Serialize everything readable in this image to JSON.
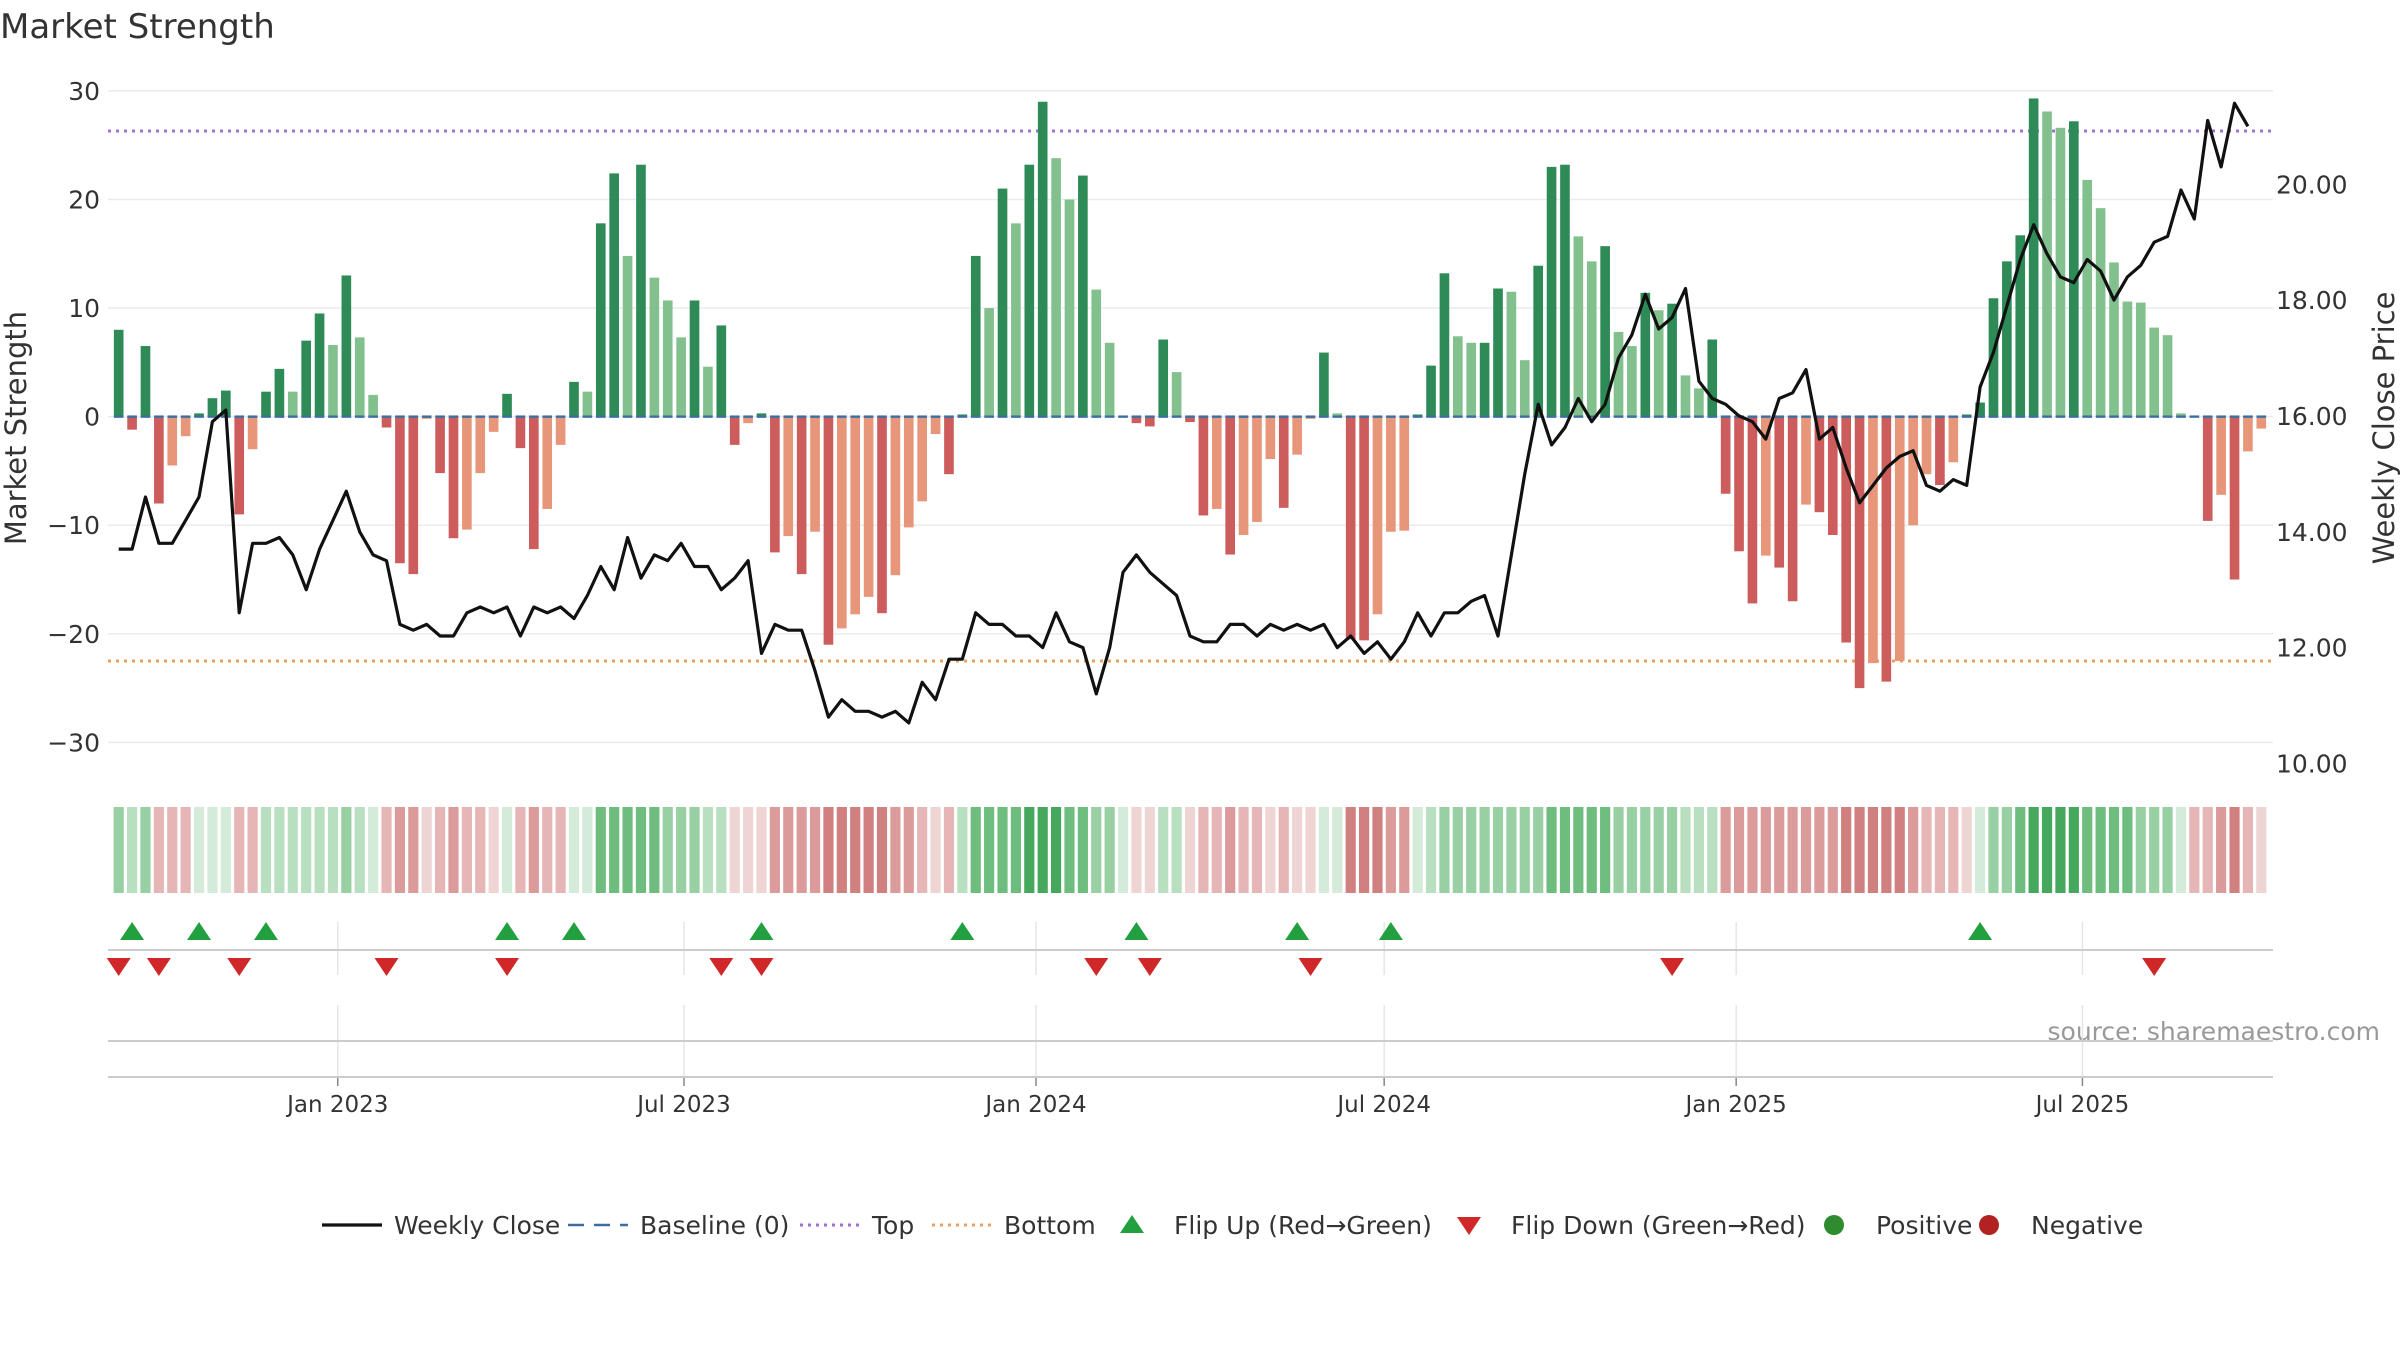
{
  "chart_data": {
    "type": "bar",
    "title": "Market Strength",
    "ylabel_left": "Market Strength",
    "ylabel_right": "Weekly Close Price",
    "ylim_left": [
      -33,
      31
    ],
    "ylim_right": [
      9.8,
      21.8
    ],
    "yticks_left": [
      30,
      20,
      10,
      0,
      -10,
      -20,
      -30
    ],
    "yticks_left_labels": [
      "30",
      "20",
      "10",
      "0",
      "−10",
      "−20",
      "−30"
    ],
    "yticks_right": [
      20,
      18,
      16,
      14,
      12,
      10
    ],
    "yticks_right_labels": [
      "20.00",
      "18.00",
      "16.00",
      "14.00",
      "12.00",
      "10.00"
    ],
    "top_line": 26.3,
    "bottom_line": -22.5,
    "start_date": "2022-09-05",
    "end_date": "2025-10-06",
    "x_ticks": [
      {
        "date": "2023-01-01",
        "label": "Jan 2023"
      },
      {
        "date": "2023-07-01",
        "label": "Jul 2023"
      },
      {
        "date": "2024-01-01",
        "label": "Jan 2024"
      },
      {
        "date": "2024-07-01",
        "label": "Jul 2024"
      },
      {
        "date": "2025-01-01",
        "label": "Jan 2025"
      },
      {
        "date": "2025-07-01",
        "label": "Jul 2025"
      }
    ],
    "strength_values": [
      8,
      -1.2,
      6.5,
      -8,
      -4.5,
      -1.8,
      0.3,
      1.7,
      2.4,
      -9,
      -3,
      2.3,
      4.4,
      2.3,
      7,
      9.5,
      6.6,
      13,
      7.3,
      2,
      -1,
      -13.5,
      -14.5,
      -0.2,
      -5.2,
      -11.2,
      -10.4,
      -5.2,
      -1.4,
      2.1,
      -2.9,
      -12.2,
      -8.5,
      -2.6,
      3.2,
      2.3,
      17.8,
      22.4,
      14.8,
      23.2,
      12.8,
      10.7,
      7.3,
      10.7,
      4.6,
      8.4,
      -2.6,
      -0.6,
      0.3,
      -12.5,
      -11,
      -14.5,
      -10.6,
      -21,
      -19.5,
      -18.2,
      -16.6,
      -18.1,
      -14.6,
      -10.2,
      -7.8,
      -1.6,
      -5.3,
      0.2,
      14.8,
      10,
      21,
      17.8,
      23.2,
      29,
      23.8,
      20,
      22.2,
      11.7,
      6.8,
      0,
      -0.6,
      -0.9,
      7.1,
      4.1,
      -0.5,
      -9.1,
      -8.5,
      -12.7,
      -10.9,
      -9.7,
      -3.9,
      -8.4,
      -3.5,
      -0.2,
      5.9,
      0.3,
      -20.5,
      -20.6,
      -18.2,
      -10.6,
      -10.5,
      0.2,
      4.7,
      13.2,
      7.4,
      6.8,
      6.8,
      11.8,
      11.5,
      5.2,
      13.9,
      23,
      23.2,
      16.6,
      14.3,
      15.7,
      7.8,
      6.5,
      11.4,
      9.8,
      10.4,
      3.8,
      2.6,
      7.1,
      -7.1,
      -12.4,
      -17.2,
      -12.8,
      -13.9,
      -17,
      -8.1,
      -8.8,
      -10.9,
      -20.8,
      -25,
      -22.7,
      -24.4,
      -22.5,
      -10,
      -5.3,
      -6.3,
      -4.2,
      0.2,
      1.3,
      10.9,
      14.3,
      16.7,
      29.3,
      28.1,
      26.6,
      27.2,
      21.8,
      19.2,
      14.2,
      10.6,
      10.5,
      8.2,
      7.5,
      0.3,
      0,
      -9.6,
      -7.2,
      -15,
      -3.2,
      -1.1
    ],
    "close_prices": [
      13.7,
      13.7,
      14.6,
      13.8,
      13.8,
      14.2,
      14.6,
      15.9,
      16.1,
      12.6,
      13.8,
      13.8,
      13.9,
      13.6,
      13,
      13.7,
      14.2,
      14.7,
      14,
      13.6,
      13.5,
      12.4,
      12.3,
      12.4,
      12.2,
      12.2,
      12.6,
      12.7,
      12.6,
      12.7,
      12.2,
      12.7,
      12.6,
      12.7,
      12.5,
      12.9,
      13.4,
      13,
      13.9,
      13.2,
      13.6,
      13.5,
      13.8,
      13.4,
      13.4,
      13,
      13.2,
      13.5,
      11.9,
      12.4,
      12.3,
      12.3,
      11.6,
      10.8,
      11.1,
      10.9,
      10.9,
      10.8,
      10.9,
      10.7,
      11.4,
      11.1,
      11.8,
      11.8,
      12.6,
      12.4,
      12.4,
      12.2,
      12.2,
      12,
      12.6,
      12.1,
      12,
      11.2,
      12,
      13.3,
      13.6,
      13.3,
      13.1,
      12.9,
      12.2,
      12.1,
      12.1,
      12.4,
      12.4,
      12.2,
      12.4,
      12.3,
      12.4,
      12.3,
      12.4,
      12,
      12.2,
      11.9,
      12.1,
      11.8,
      12.1,
      12.6,
      12.2,
      12.6,
      12.6,
      12.8,
      12.9,
      12.2,
      13.6,
      15,
      16.2,
      15.5,
      15.8,
      16.3,
      15.9,
      16.2,
      17,
      17.4,
      18.1,
      17.5,
      17.7,
      18.2,
      16.6,
      16.3,
      16.2,
      16,
      15.9,
      15.6,
      16.3,
      16.4,
      16.8,
      15.6,
      15.8,
      15.1,
      14.5,
      14.8,
      15.1,
      15.3,
      15.4,
      14.8,
      14.7,
      14.9,
      14.8,
      16.5,
      17.1,
      17.9,
      18.7,
      19.3,
      18.8,
      18.4,
      18.3,
      18.7,
      18.5,
      18,
      18.4,
      18.6,
      19,
      19.1,
      19.9,
      19.4,
      21.1,
      20.3,
      21.4,
      21
    ],
    "band_levels": [
      3,
      2,
      3,
      -2,
      -2,
      -2,
      1,
      1,
      1,
      -2,
      -2,
      2,
      2,
      2,
      2,
      2,
      2,
      3,
      2,
      1,
      -2,
      -3,
      -3,
      -1,
      -2,
      -3,
      -2,
      -2,
      -1,
      1,
      -2,
      -3,
      -2,
      -2,
      1,
      1,
      4,
      4,
      4,
      4,
      4,
      3,
      3,
      3,
      2,
      2,
      -1,
      -1,
      -1,
      -3,
      -3,
      -3,
      -3,
      -4,
      -4,
      -4,
      -4,
      -4,
      -3,
      -3,
      -2,
      -1,
      -2,
      2,
      4,
      4,
      4,
      4,
      5,
      5,
      5,
      4,
      4,
      3,
      3,
      1,
      -1,
      -1,
      2,
      2,
      -1,
      -2,
      -2,
      -3,
      -2,
      -2,
      -1,
      -2,
      -1,
      -1,
      1,
      1,
      -4,
      -4,
      -4,
      -3,
      -3,
      1,
      2,
      3,
      3,
      3,
      3,
      3,
      3,
      3,
      3,
      4,
      4,
      4,
      4,
      4,
      3,
      3,
      3,
      3,
      3,
      2,
      2,
      2,
      -3,
      -3,
      -3,
      -3,
      -3,
      -3,
      -3,
      -3,
      -3,
      -4,
      -4,
      -4,
      -4,
      -4,
      -3,
      -2,
      -2,
      -2,
      -1,
      1,
      3,
      3,
      4,
      5,
      5,
      5,
      5,
      4,
      4,
      4,
      4,
      3,
      3,
      3,
      1,
      -2,
      -2,
      -3,
      -4,
      -2,
      -1
    ],
    "flip_up_indices": [
      1,
      6,
      11,
      29,
      34,
      48,
      63,
      76,
      88,
      95,
      139
    ],
    "flip_down_indices": [
      0,
      3,
      9,
      20,
      29,
      45,
      48,
      73,
      77,
      89,
      116,
      152
    ],
    "source": "source: sharemaestro.com",
    "legend": [
      {
        "label": "Weekly Close",
        "symbol": "line",
        "color": "#111111"
      },
      {
        "label": "Baseline (0)",
        "symbol": "dashed",
        "color": "#3b6fa3"
      },
      {
        "label": "Top",
        "symbol": "dotted",
        "color": "#a070d0"
      },
      {
        "label": "Bottom",
        "symbol": "dotted",
        "color": "#e8a060"
      },
      {
        "label": "Flip Up (Red→Green)",
        "symbol": "up",
        "color": "#22a040"
      },
      {
        "label": "Flip Down (Green→Red)",
        "symbol": "down",
        "color": "#d02828"
      },
      {
        "label": "Positive",
        "symbol": "dot",
        "color": "#2e8b2e"
      },
      {
        "label": "Negative",
        "symbol": "dot",
        "color": "#b22222"
      }
    ],
    "colors": {
      "pos_dark": "#2e8b57",
      "pos_light": "#82c18e",
      "neg_dark": "#cd5c5c",
      "neg_light": "#e8967a",
      "line": "#111111",
      "baseline": "#3b6fa3",
      "top": "#a070d0",
      "bottom": "#e8a060",
      "grid": "#ebebeb"
    }
  }
}
